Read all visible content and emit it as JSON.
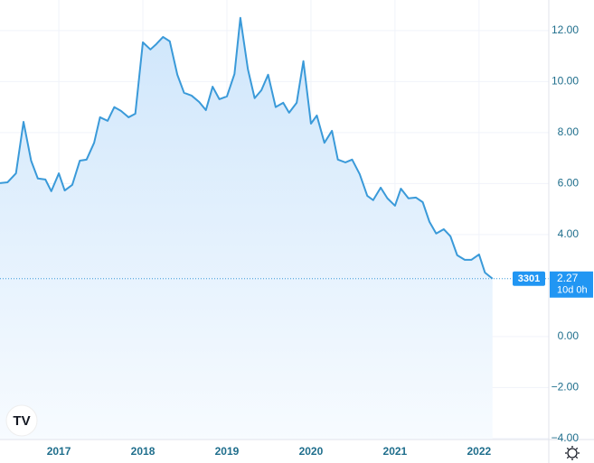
{
  "chart_data": {
    "type": "area",
    "x": [
      2016.3,
      2016.39,
      2016.49,
      2016.58,
      2016.67,
      2016.75,
      2016.84,
      2016.91,
      2017.0,
      2017.07,
      2017.16,
      2017.25,
      2017.33,
      2017.42,
      2017.49,
      2017.58,
      2017.66,
      2017.74,
      2017.83,
      2017.91,
      2018.0,
      2018.09,
      2018.16,
      2018.24,
      2018.32,
      2018.41,
      2018.49,
      2018.58,
      2018.67,
      2018.75,
      2018.83,
      2018.91,
      2019.0,
      2019.09,
      2019.16,
      2019.25,
      2019.33,
      2019.41,
      2019.49,
      2019.58,
      2019.67,
      2019.74,
      2019.83,
      2019.91,
      2020.0,
      2020.07,
      2020.16,
      2020.25,
      2020.32,
      2020.41,
      2020.49,
      2020.58,
      2020.67,
      2020.74,
      2020.83,
      2020.91,
      2021.0,
      2021.07,
      2021.16,
      2021.25,
      2021.33,
      2021.41,
      2021.49,
      2021.58,
      2021.66,
      2021.74,
      2021.83,
      2021.91,
      2022.0,
      2022.07,
      2022.16
    ],
    "values": [
      6.02,
      6.05,
      6.4,
      8.42,
      6.9,
      6.2,
      6.16,
      5.7,
      6.4,
      5.73,
      5.95,
      6.9,
      6.94,
      7.6,
      8.6,
      8.46,
      9.0,
      8.85,
      8.6,
      8.74,
      11.54,
      11.26,
      11.47,
      11.75,
      11.58,
      10.27,
      9.56,
      9.45,
      9.2,
      8.88,
      9.8,
      9.31,
      9.42,
      10.3,
      12.5,
      10.48,
      9.35,
      9.66,
      10.27,
      9.0,
      9.17,
      8.78,
      9.17,
      10.8,
      8.35,
      8.67,
      7.6,
      8.07,
      6.94,
      6.83,
      6.94,
      6.37,
      5.52,
      5.35,
      5.84,
      5.42,
      5.13,
      5.8,
      5.42,
      5.45,
      5.27,
      4.5,
      4.04,
      4.21,
      3.93,
      3.19,
      3.01,
      3.01,
      3.22,
      2.51,
      2.27
    ],
    "color": "#3a9ad9",
    "xlim": [
      2016.3,
      2022.83
    ],
    "xticks": [
      2017,
      2018,
      2019,
      2020,
      2021,
      2022
    ],
    "ylim": [
      -4.04,
      13.2
    ],
    "yticks": [
      {
        "value": 12,
        "label": "12.00"
      },
      {
        "value": 10,
        "label": "10.00"
      },
      {
        "value": 8,
        "label": "8.00"
      },
      {
        "value": 6,
        "label": "6.00"
      },
      {
        "value": 4,
        "label": "4.00"
      },
      {
        "value": 0,
        "label": "0.00"
      },
      {
        "value": -2,
        "label": "−2.00"
      },
      {
        "value": -4,
        "label": "−4.00"
      }
    ],
    "grid": true,
    "price_label": {
      "symbol": "3301",
      "value": 2.27,
      "countdown": "10d 0h"
    },
    "logo": "TV"
  }
}
